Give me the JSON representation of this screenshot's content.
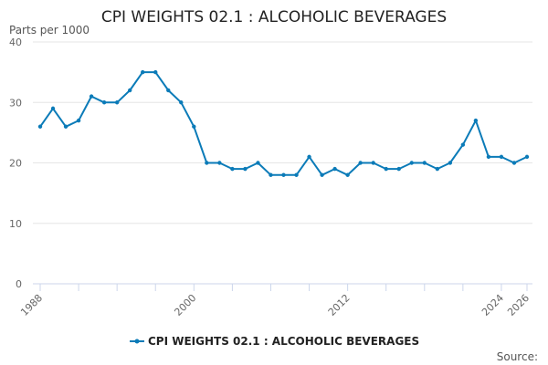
{
  "chart_data": {
    "type": "line",
    "title": "CPI WEIGHTS 02.1 : ALCOHOLIC BEVERAGES",
    "ylabel": "Parts per 1000",
    "xlabel": "",
    "x": [
      1988,
      1989,
      1990,
      1991,
      1992,
      1993,
      1994,
      1995,
      1996,
      1997,
      1998,
      1999,
      2000,
      2001,
      2002,
      2003,
      2004,
      2005,
      2006,
      2007,
      2008,
      2009,
      2010,
      2011,
      2012,
      2013,
      2014,
      2015,
      2016,
      2017,
      2018,
      2019,
      2020,
      2021,
      2022,
      2023,
      2024,
      2025,
      2026
    ],
    "series": [
      {
        "name": "CPI WEIGHTS 02.1 : ALCOHOLIC BEVERAGES",
        "color": "#0b7bb8",
        "values": [
          26,
          29,
          26,
          27,
          31,
          30,
          30,
          32,
          35,
          35,
          32,
          30,
          26,
          20,
          20,
          19,
          19,
          20,
          18,
          18,
          18,
          21,
          18,
          19,
          18,
          20,
          20,
          19,
          19,
          20,
          20,
          19,
          20,
          23,
          27,
          21,
          21,
          20,
          21
        ]
      }
    ],
    "xlim": [
      1988,
      2026
    ],
    "ylim": [
      0,
      40
    ],
    "y_ticks": [
      0,
      10,
      20,
      30,
      40
    ],
    "x_tick_labels": [
      "1988",
      "2000",
      "2012",
      "2024",
      "2026"
    ],
    "x_minor_ticks": [
      1991,
      1994,
      1997,
      2003,
      2006,
      2009,
      2015,
      2018,
      2021
    ],
    "grid": true,
    "legend": "bottom-center",
    "source_label": "Source:"
  }
}
